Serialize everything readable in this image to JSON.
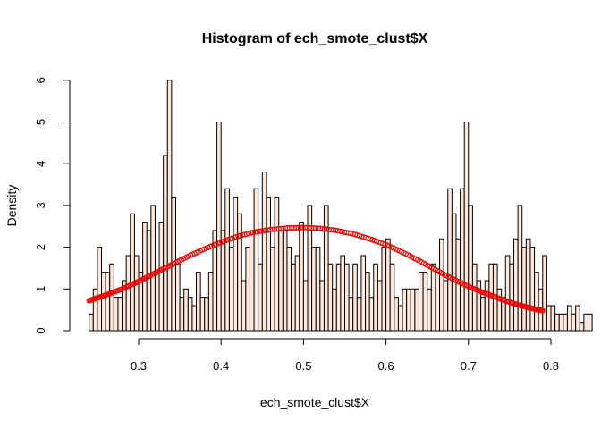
{
  "chart_data": {
    "type": "histogram",
    "title": "Histogram of ech_smote_clust$X",
    "xlabel": "ech_smote_clust$X",
    "ylabel": "Density",
    "xlim": [
      0.22,
      0.8
    ],
    "ylim": [
      0,
      6
    ],
    "x_ticks": [
      "0.3",
      "0.4",
      "0.5",
      "0.6",
      "0.7",
      "0.8"
    ],
    "y_ticks": [
      "0",
      "1",
      "2",
      "3",
      "4",
      "5",
      "6"
    ],
    "grid": false,
    "legend": "none",
    "bar_fill": "#fde8dc",
    "curve_color": "#ee0000",
    "bin_start": 0.24,
    "bin_width": 0.005,
    "densities": [
      0.4,
      1.0,
      2.0,
      1.4,
      1.4,
      1.6,
      0.8,
      0.8,
      1.2,
      1.8,
      2.8,
      1.8,
      1.4,
      2.6,
      2.4,
      3.0,
      1.4,
      2.6,
      4.2,
      6.0,
      3.2,
      1.6,
      0.8,
      1.0,
      0.8,
      0.6,
      1.4,
      0.8,
      0.8,
      1.4,
      2.4,
      5.0,
      2.4,
      3.4,
      2.0,
      3.2,
      2.8,
      1.2,
      2.0,
      2.4,
      3.4,
      1.6,
      3.8,
      3.2,
      2.0,
      3.2,
      2.4,
      2.4,
      2.0,
      1.6,
      1.8,
      2.6,
      1.2,
      3.0,
      2.0,
      2.0,
      1.2,
      3.0,
      1.6,
      1.0,
      1.6,
      1.8,
      1.6,
      0.8,
      1.6,
      0.8,
      1.8,
      1.4,
      0.8,
      1.6,
      1.2,
      2.0,
      2.2,
      1.6,
      0.8,
      0.6,
      1.0,
      1.0,
      1.0,
      1.0,
      1.4,
      1.4,
      1.0,
      1.6,
      1.4,
      2.2,
      1.2,
      3.4,
      2.8,
      2.2,
      3.4,
      5.0,
      3.0,
      1.6,
      1.2,
      0.8,
      1.2,
      1.6,
      1.6,
      1.0,
      0.8,
      1.8,
      1.6,
      2.2,
      3.0,
      2.0,
      2.2,
      2.0,
      1.4,
      1.0,
      1.8,
      0.6,
      0.6,
      0.4,
      0.4,
      0.4,
      0.6,
      0.4,
      0.6,
      0.2,
      0.4,
      0.4
    ],
    "density_curve": {
      "x": [
        0.24,
        0.26,
        0.28,
        0.3,
        0.32,
        0.34,
        0.36,
        0.38,
        0.4,
        0.42,
        0.44,
        0.46,
        0.48,
        0.5,
        0.52,
        0.54,
        0.56,
        0.58,
        0.6,
        0.62,
        0.64,
        0.66,
        0.68,
        0.7,
        0.72,
        0.74,
        0.76,
        0.78,
        0.79
      ],
      "y": [
        0.72,
        0.85,
        1.0,
        1.18,
        1.38,
        1.58,
        1.78,
        1.96,
        2.12,
        2.26,
        2.36,
        2.42,
        2.46,
        2.47,
        2.45,
        2.4,
        2.32,
        2.2,
        2.06,
        1.88,
        1.68,
        1.46,
        1.25,
        1.06,
        0.9,
        0.75,
        0.62,
        0.52,
        0.48
      ]
    }
  }
}
